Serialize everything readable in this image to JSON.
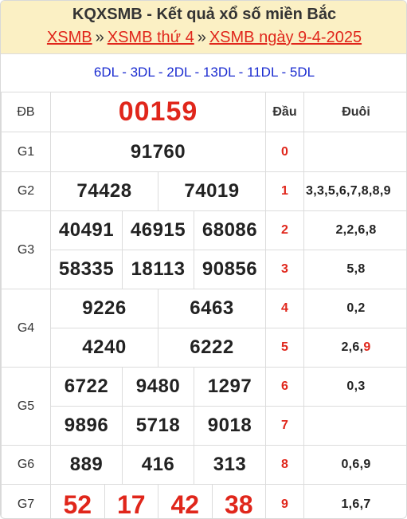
{
  "header": {
    "title": "KQXSMB - Kết quả xổ số miền Bắc",
    "links": [
      "XSMB",
      "XSMB thứ 4",
      "XSMB ngày 9-4-2025"
    ],
    "separator": "»"
  },
  "codes": "6DL - 3DL - 2DL - 13DL - 11DL - 5DL",
  "table_header": {
    "dau": "Đầu",
    "duoi": "Đuôi"
  },
  "prizes": {
    "db": {
      "label": "ĐB",
      "numbers": [
        "00159"
      ]
    },
    "g1": {
      "label": "G1",
      "numbers": [
        "91760"
      ]
    },
    "g2": {
      "label": "G2",
      "numbers": [
        "74428",
        "74019"
      ]
    },
    "g3": {
      "label": "G3",
      "numbers": [
        "40491",
        "46915",
        "68086",
        "58335",
        "18113",
        "90856"
      ]
    },
    "g4": {
      "label": "G4",
      "numbers": [
        "9226",
        "6463",
        "4240",
        "6222"
      ]
    },
    "g5": {
      "label": "G5",
      "numbers": [
        "6722",
        "9480",
        "1297",
        "9896",
        "5718",
        "9018"
      ]
    },
    "g6": {
      "label": "G6",
      "numbers": [
        "889",
        "416",
        "313"
      ]
    },
    "g7": {
      "label": "G7",
      "numbers": [
        "52",
        "17",
        "42",
        "38"
      ]
    }
  },
  "loto": [
    {
      "dau": "0",
      "duoi": ""
    },
    {
      "dau": "1",
      "duoi": "3,3,5,6,7,8,8,9"
    },
    {
      "dau": "2",
      "duoi": "2,2,6,8"
    },
    {
      "dau": "3",
      "duoi": "5,8"
    },
    {
      "dau": "4",
      "duoi": "0,2"
    },
    {
      "dau": "5",
      "duoi": "2,6,",
      "duoi_highlight": "9"
    },
    {
      "dau": "6",
      "duoi": "0,3"
    },
    {
      "dau": "7",
      "duoi": ""
    },
    {
      "dau": "8",
      "duoi": "0,6,9"
    },
    {
      "dau": "9",
      "duoi": "1,6,7"
    }
  ],
  "colors": {
    "header_bg": "#fbf0c4",
    "red": "#e0261b",
    "blue": "#1a2bd0"
  }
}
